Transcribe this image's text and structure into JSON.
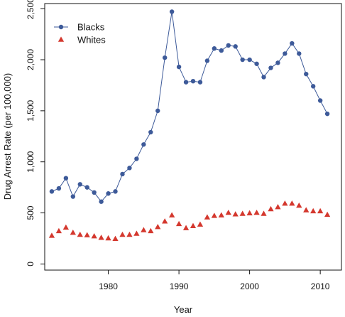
{
  "chart_data": {
    "type": "line",
    "title": "",
    "xlabel": "Year",
    "ylabel": "Drug Arrest Rate (per 100,000)",
    "xlim": [
      1971,
      2013
    ],
    "ylim": [
      -60,
      2550
    ],
    "x_ticks": [
      1980,
      1990,
      2000,
      2010
    ],
    "x_tick_labels": [
      "1980",
      "1990",
      "2000",
      "2010"
    ],
    "y_ticks": [
      0,
      500,
      1000,
      1500,
      2000,
      2500
    ],
    "y_tick_labels": [
      "0",
      "500",
      "1,000",
      "1,500",
      "2,000",
      "2,500"
    ],
    "grid": false,
    "legend_position": "top-left",
    "x": [
      1972,
      1973,
      1974,
      1975,
      1976,
      1977,
      1978,
      1979,
      1980,
      1981,
      1982,
      1983,
      1984,
      1985,
      1986,
      1987,
      1988,
      1989,
      1990,
      1991,
      1992,
      1993,
      1994,
      1995,
      1996,
      1997,
      1998,
      1999,
      2000,
      2001,
      2002,
      2003,
      2004,
      2005,
      2006,
      2007,
      2008,
      2009,
      2010,
      2011
    ],
    "series": [
      {
        "name": "Blacks",
        "color": "#3d5a99",
        "marker": "circle",
        "line": true,
        "values": [
          710,
          740,
          840,
          660,
          780,
          750,
          700,
          610,
          690,
          710,
          880,
          940,
          1030,
          1170,
          1290,
          1500,
          2020,
          2470,
          1930,
          1780,
          1790,
          1780,
          1990,
          2110,
          2090,
          2140,
          2130,
          2000,
          2000,
          1960,
          1830,
          1920,
          1970,
          2060,
          2160,
          2060,
          1860,
          1740,
          1600,
          1470
        ]
      },
      {
        "name": "Whites",
        "color": "#d4382e",
        "marker": "triangle",
        "line": false,
        "values": [
          275,
          320,
          355,
          305,
          285,
          280,
          270,
          255,
          250,
          245,
          285,
          285,
          295,
          330,
          320,
          360,
          415,
          475,
          390,
          350,
          370,
          385,
          455,
          470,
          475,
          500,
          485,
          490,
          495,
          500,
          490,
          535,
          555,
          590,
          590,
          570,
          525,
          515,
          515,
          480
        ]
      }
    ]
  }
}
